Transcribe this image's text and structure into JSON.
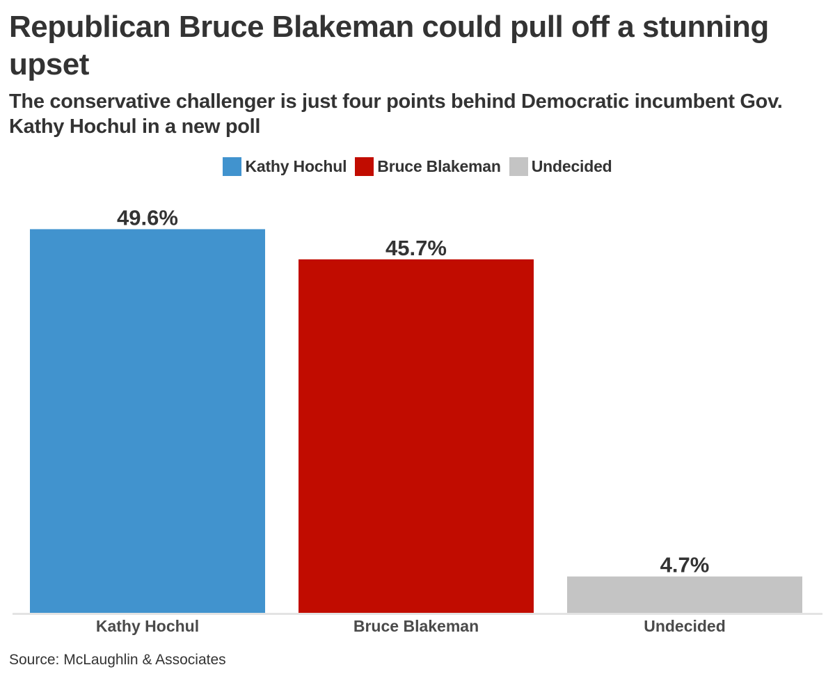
{
  "chart_data": {
    "type": "bar",
    "title": "Republican Bruce Blakeman could pull off a stunning upset",
    "subtitle": "The conservative challenger is just four points behind Democratic incumbent Gov. Kathy Hochul in a new poll",
    "categories": [
      "Kathy Hochul",
      "Bruce Blakeman",
      "Undecided"
    ],
    "values": [
      49.6,
      45.7,
      4.7
    ],
    "value_labels": [
      "49.6%",
      "45.7%",
      "4.7%"
    ],
    "colors": [
      "#4193ce",
      "#c10c00",
      "#c4c4c4"
    ],
    "legend": [
      {
        "label": "Kathy Hochul",
        "color": "#4193ce"
      },
      {
        "label": "Bruce Blakeman",
        "color": "#c10c00"
      },
      {
        "label": "Undecided",
        "color": "#c4c4c4"
      }
    ],
    "legend_position": "top-center",
    "ylim": [
      0,
      50
    ],
    "grid": false,
    "source": "Source: McLaughlin & Associates"
  }
}
